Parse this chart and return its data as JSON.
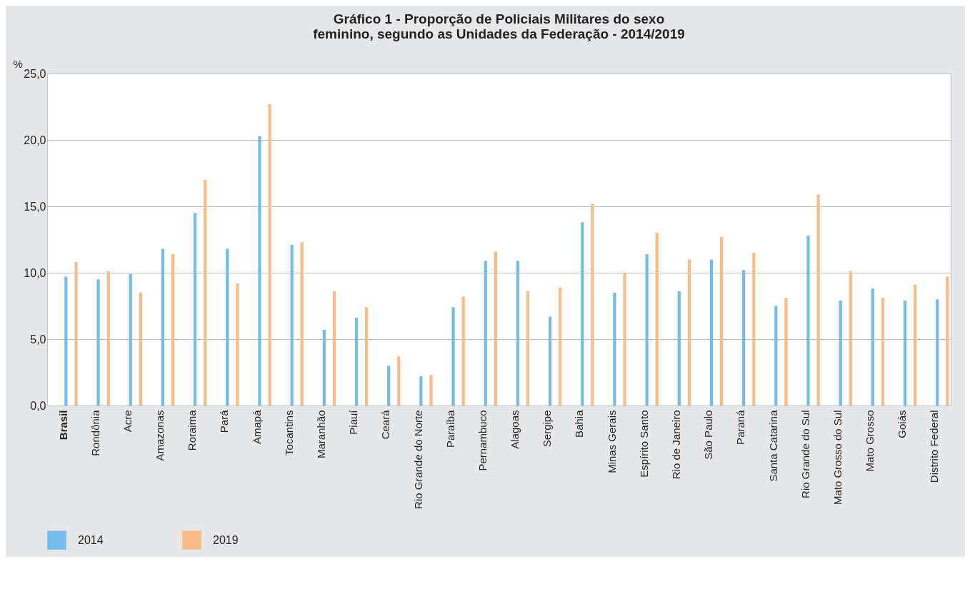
{
  "chart_data": {
    "type": "bar",
    "title": "Gráfico 1 - Proporção de Policiais Militares do sexo feminino, segundo as Unidades da Federação - 2014/2019",
    "ylabel": "%",
    "categories": [
      "Brasil",
      "Rondônia",
      "Acre",
      "Amazonas",
      "Roraima",
      "Pará",
      "Amapá",
      "Tocantins",
      "Maranhão",
      "Piauí",
      "Ceará",
      "Rio Grande do Norte",
      "Paraíba",
      "Pernambuco",
      "Alagoas",
      "Sergipe",
      "Bahia",
      "Minas Gerais",
      "Espírito Santo",
      "Rio de Janeiro",
      "São Paulo",
      "Paraná",
      "Santa Catarina",
      "Rio Grande do Sul",
      "Mato Grosso do Sul",
      "Mato Grosso",
      "Goiás",
      "Distrito Federal"
    ],
    "series": [
      {
        "name": "2014",
        "color": "#74bde8",
        "values": [
          9.7,
          9.5,
          9.9,
          11.8,
          14.5,
          11.8,
          20.3,
          12.1,
          5.7,
          6.6,
          3.0,
          2.2,
          7.4,
          10.9,
          10.9,
          6.7,
          13.8,
          8.5,
          11.4,
          8.6,
          11.0,
          10.2,
          7.5,
          12.8,
          7.9,
          8.8,
          7.9,
          8.0
        ]
      },
      {
        "name": "2019",
        "color": "#f9bc86",
        "values": [
          10.8,
          10.1,
          8.5,
          11.4,
          17.0,
          9.2,
          22.7,
          12.3,
          8.6,
          7.4,
          3.7,
          2.3,
          8.2,
          11.6,
          8.6,
          8.9,
          15.2,
          10.0,
          13.0,
          11.0,
          12.7,
          11.5,
          8.1,
          15.9,
          10.1,
          8.1,
          9.1,
          9.7
        ]
      }
    ],
    "ylim": [
      0,
      25
    ],
    "yticks": [
      {
        "value": 0,
        "label": "0,0"
      },
      {
        "value": 5,
        "label": "5,0"
      },
      {
        "value": 10,
        "label": "10,0"
      },
      {
        "value": 15,
        "label": "15,0"
      },
      {
        "value": 20,
        "label": "20,0"
      },
      {
        "value": 25,
        "label": "25,0"
      }
    ],
    "grid": "y",
    "legend": "bottom"
  }
}
